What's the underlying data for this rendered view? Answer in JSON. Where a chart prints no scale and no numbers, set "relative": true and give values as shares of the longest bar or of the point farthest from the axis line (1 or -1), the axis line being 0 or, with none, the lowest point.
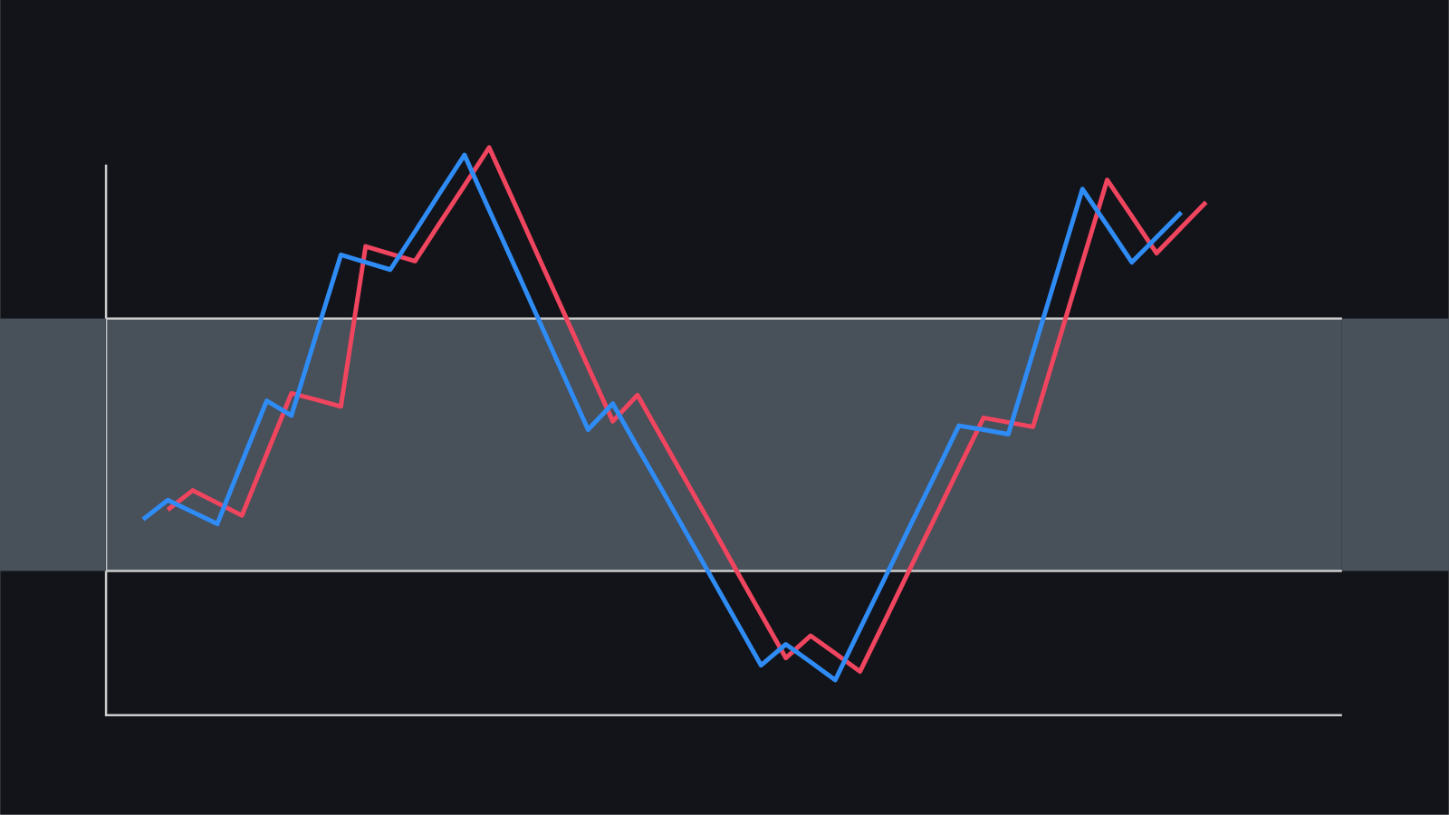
{
  "chart_data": {
    "type": "line",
    "relative": true,
    "marker": "none",
    "line_style": "solid",
    "categories": [
      null,
      null,
      null,
      null,
      null,
      null,
      null,
      null,
      null,
      null,
      null,
      null,
      null,
      null,
      null,
      null,
      null,
      null,
      null,
      null,
      null,
      null,
      null,
      null,
      null,
      null,
      null,
      null,
      null,
      null,
      null,
      null,
      null,
      null,
      null,
      null,
      null,
      null,
      null,
      null,
      null,
      null,
      null,
      null,
      null,
      null,
      null,
      null,
      null,
      null
    ],
    "bands": [
      {
        "axis": "y",
        "from": 0.254,
        "to": 0.699,
        "color": "#48505a"
      }
    ],
    "ref_lines": [
      {
        "axis": "y",
        "value": 0.254,
        "color": "#cccccc"
      },
      {
        "axis": "y",
        "value": 0.699,
        "color": "#cccccc"
      }
    ],
    "series": [
      {
        "color": "#f0455f",
        "values": [
          null,
          null,
          0.362,
          0.396,
          0.374,
          0.352,
          0.46,
          0.567,
          0.556,
          0.544,
          0.826,
          0.813,
          0.8,
          0.867,
          0.933,
          1.0,
          0.904,
          0.807,
          0.711,
          0.614,
          0.518,
          0.564,
          0.487,
          0.41,
          0.333,
          0.255,
          0.178,
          0.101,
          0.14,
          0.109,
          0.077,
          0.166,
          0.256,
          0.345,
          0.435,
          0.524,
          0.516,
          0.508,
          0.653,
          0.798,
          0.943,
          0.879,
          0.814,
          0.859,
          0.904,
          null,
          null,
          null,
          null,
          null
        ]
      },
      {
        "color": "#2f8cf5",
        "values": [
          null,
          0.345,
          0.379,
          0.358,
          0.337,
          0.446,
          0.554,
          0.528,
          0.67,
          0.811,
          0.798,
          0.785,
          0.852,
          0.92,
          0.987,
          0.89,
          0.794,
          0.697,
          0.6,
          0.503,
          0.549,
          0.472,
          0.396,
          0.319,
          0.242,
          0.165,
          0.088,
          0.125,
          0.094,
          0.062,
          0.152,
          0.241,
          0.331,
          0.42,
          0.51,
          0.503,
          0.495,
          0.639,
          0.783,
          0.927,
          0.863,
          0.798,
          0.842,
          0.886,
          null,
          null,
          null,
          null,
          null,
          null
        ]
      }
    ]
  }
}
